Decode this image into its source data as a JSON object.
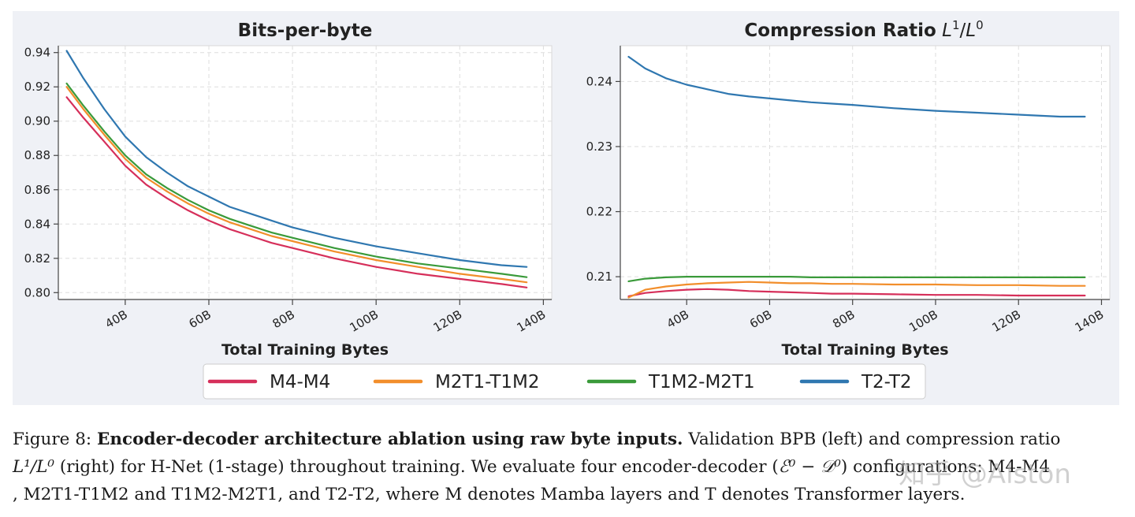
{
  "chart_data": [
    {
      "type": "line",
      "title": "Bits-per-byte",
      "xlabel": "Total Training Bytes",
      "ylabel": "",
      "xlim": [
        24,
        142
      ],
      "ylim": [
        0.796,
        0.944
      ],
      "xticks": [
        40,
        60,
        80,
        100,
        120,
        140
      ],
      "xtick_labels": [
        "40B",
        "60B",
        "80B",
        "100B",
        "120B",
        "140B"
      ],
      "yticks": [
        0.8,
        0.82,
        0.84,
        0.86,
        0.88,
        0.9,
        0.92,
        0.94
      ],
      "ytick_labels": [
        "0.80",
        "0.82",
        "0.84",
        "0.86",
        "0.88",
        "0.90",
        "0.92",
        "0.94"
      ],
      "grid": true,
      "x": [
        26,
        30,
        35,
        40,
        45,
        50,
        55,
        60,
        65,
        70,
        75,
        80,
        90,
        100,
        110,
        120,
        130,
        136
      ],
      "series": [
        {
          "name": "M4-M4",
          "color": "#d62f5a",
          "values": [
            0.914,
            0.902,
            0.888,
            0.874,
            0.863,
            0.855,
            0.848,
            0.842,
            0.837,
            0.833,
            0.829,
            0.826,
            0.82,
            0.815,
            0.811,
            0.808,
            0.805,
            0.803
          ]
        },
        {
          "name": "M2T1-T1M2",
          "color": "#f28e2b",
          "values": [
            0.92,
            0.907,
            0.892,
            0.878,
            0.867,
            0.859,
            0.852,
            0.846,
            0.841,
            0.837,
            0.833,
            0.83,
            0.824,
            0.819,
            0.815,
            0.811,
            0.808,
            0.806
          ]
        },
        {
          "name": "T1M2-M2T1",
          "color": "#3a9a3a",
          "values": [
            0.922,
            0.909,
            0.894,
            0.88,
            0.869,
            0.861,
            0.854,
            0.848,
            0.843,
            0.839,
            0.835,
            0.832,
            0.826,
            0.821,
            0.817,
            0.814,
            0.811,
            0.809
          ]
        },
        {
          "name": "T2-T2",
          "color": "#2f77b0",
          "values": [
            0.941,
            0.925,
            0.907,
            0.891,
            0.879,
            0.87,
            0.862,
            0.856,
            0.85,
            0.846,
            0.842,
            0.838,
            0.832,
            0.827,
            0.823,
            0.819,
            0.816,
            0.815
          ]
        }
      ]
    },
    {
      "type": "line",
      "title": "Compression Ratio",
      "title_math": {
        "L": "L",
        "sup1": "1",
        "slash": "/",
        "sup0": "0"
      },
      "xlabel": "Total Training Bytes",
      "ylabel": "",
      "xlim": [
        24,
        142
      ],
      "ylim": [
        0.2065,
        0.2455
      ],
      "xticks": [
        40,
        60,
        80,
        100,
        120,
        140
      ],
      "xtick_labels": [
        "40B",
        "60B",
        "80B",
        "100B",
        "120B",
        "140B"
      ],
      "yticks": [
        0.21,
        0.22,
        0.23,
        0.24
      ],
      "ytick_labels": [
        "0.21",
        "0.22",
        "0.23",
        "0.24"
      ],
      "grid": true,
      "x": [
        26,
        30,
        35,
        40,
        45,
        50,
        55,
        60,
        65,
        70,
        75,
        80,
        90,
        100,
        110,
        120,
        130,
        136
      ],
      "series": [
        {
          "name": "M4-M4",
          "color": "#d62f5a",
          "values": [
            0.207,
            0.2075,
            0.2078,
            0.208,
            0.2081,
            0.208,
            0.2078,
            0.2077,
            0.2076,
            0.2075,
            0.2074,
            0.2074,
            0.2073,
            0.2072,
            0.2072,
            0.2071,
            0.2071,
            0.2071
          ]
        },
        {
          "name": "M2T1-T1M2",
          "color": "#f28e2b",
          "values": [
            0.2068,
            0.208,
            0.2085,
            0.2088,
            0.209,
            0.2091,
            0.2092,
            0.2091,
            0.209,
            0.209,
            0.2089,
            0.2089,
            0.2088,
            0.2088,
            0.2087,
            0.2087,
            0.2086,
            0.2086
          ]
        },
        {
          "name": "T1M2-M2T1",
          "color": "#3a9a3a",
          "values": [
            0.2093,
            0.2097,
            0.2099,
            0.21,
            0.21,
            0.21,
            0.21,
            0.21,
            0.21,
            0.2099,
            0.2099,
            0.2099,
            0.2099,
            0.2099,
            0.2099,
            0.2099,
            0.2099,
            0.2099
          ]
        },
        {
          "name": "T2-T2",
          "color": "#2f77b0",
          "values": [
            0.2438,
            0.242,
            0.2405,
            0.2395,
            0.2388,
            0.2381,
            0.2377,
            0.2374,
            0.2371,
            0.2368,
            0.2366,
            0.2364,
            0.2359,
            0.2355,
            0.2352,
            0.2349,
            0.2346,
            0.2346
          ]
        }
      ]
    }
  ],
  "legend": {
    "placement": "bottom-center",
    "entries": [
      {
        "name": "M4-M4",
        "color": "#d62f5a"
      },
      {
        "name": "M2T1-T1M2",
        "color": "#f28e2b"
      },
      {
        "name": "T1M2-M2T1",
        "color": "#3a9a3a"
      },
      {
        "name": "T2-T2",
        "color": "#2f77b0"
      }
    ]
  },
  "caption": {
    "label": "Figure 8:",
    "bold": "Encoder-decoder architecture ablation using raw byte inputs.",
    "line1_rest": "Validation BPB (left) and compression ratio",
    "line2_math": "L¹/L⁰",
    "line2_rest_a": "(right) for H-Net (1-stage) throughout training. We evaluate four encoder-decoder (",
    "line2_math_b": "ℰ⁰ − 𝒟⁰",
    "line2_rest_b": ") configurations: M4-M4",
    "line3": ", M2T1-T1M2 and T1M2-M2T1, and T2-T2, where M denotes Mamba layers and T denotes Transformer layers."
  },
  "watermark": "知乎 @Alston"
}
